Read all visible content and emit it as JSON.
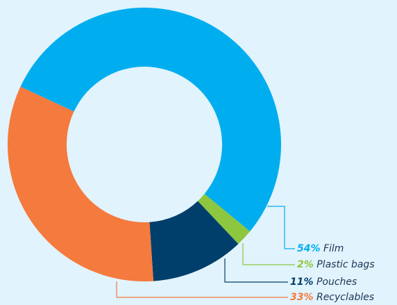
{
  "chart_data": {
    "type": "donut",
    "categories": [
      "Film",
      "Plastic bags",
      "Pouches",
      "Recyclables"
    ],
    "values": [
      54,
      2,
      11,
      33
    ],
    "value_labels": [
      "54%",
      "2%",
      "11%",
      "33%"
    ],
    "colors": [
      "#00aeef",
      "#8dc63f",
      "#003f6b",
      "#f47a3d"
    ]
  }
}
